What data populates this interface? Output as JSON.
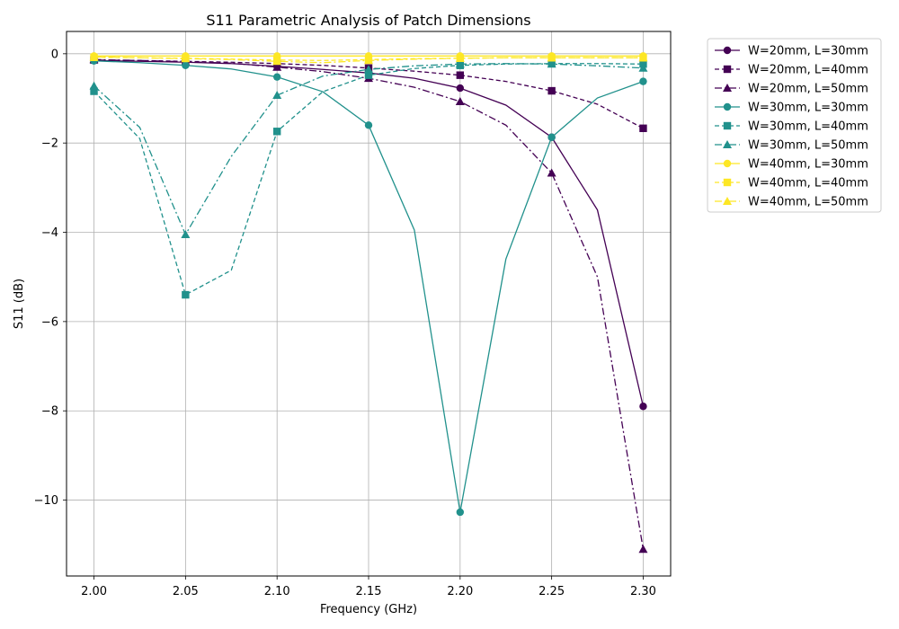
{
  "chart_data": {
    "type": "line",
    "title": "S11 Parametric Analysis of Patch Dimensions",
    "xlabel": "Frequency (GHz)",
    "ylabel": "S11 (dB)",
    "xlim": [
      1.985,
      2.315
    ],
    "ylim": [
      -11.7,
      0.5
    ],
    "xticks": [
      2.0,
      2.05,
      2.1,
      2.15,
      2.2,
      2.25,
      2.3
    ],
    "xtick_labels": [
      "2.00",
      "2.05",
      "2.10",
      "2.15",
      "2.20",
      "2.25",
      "2.30"
    ],
    "yticks": [
      0,
      -2,
      -4,
      -6,
      -8,
      -10
    ],
    "ytick_labels": [
      "0",
      "−2",
      "−4",
      "−6",
      "−8",
      "−10"
    ],
    "grid": true,
    "legend_position": "outside-right-top",
    "x": [
      2.0,
      2.025,
      2.05,
      2.075,
      2.1,
      2.125,
      2.15,
      2.175,
      2.2,
      2.225,
      2.25,
      2.275,
      2.3
    ],
    "marker_x": [
      2.0,
      2.05,
      2.1,
      2.15,
      2.2,
      2.25,
      2.3
    ],
    "series": [
      {
        "name": "W=20mm, L=30mm",
        "color": "#440154",
        "dash": "solid",
        "marker": "circle",
        "values": [
          -0.15,
          -0.17,
          -0.19,
          -0.22,
          -0.28,
          -0.35,
          -0.43,
          -0.55,
          -0.77,
          -1.15,
          -1.87,
          -3.5,
          -7.9
        ]
      },
      {
        "name": "W=20mm, L=40mm",
        "color": "#440154",
        "dash": "dashed",
        "marker": "square",
        "values": [
          -0.14,
          -0.15,
          -0.17,
          -0.19,
          -0.22,
          -0.26,
          -0.32,
          -0.39,
          -0.48,
          -0.62,
          -0.83,
          -1.13,
          -1.67
        ]
      },
      {
        "name": "W=20mm, L=50mm",
        "color": "#440154",
        "dash": "dashdot",
        "marker": "triangle",
        "values": [
          -0.13,
          -0.15,
          -0.18,
          -0.21,
          -0.3,
          -0.4,
          -0.55,
          -0.75,
          -1.07,
          -1.6,
          -2.67,
          -5.0,
          -11.1
        ]
      },
      {
        "name": "W=30mm, L=30mm",
        "color": "#21918c",
        "dash": "solid",
        "marker": "circle",
        "values": [
          -0.16,
          -0.2,
          -0.26,
          -0.34,
          -0.52,
          -0.85,
          -1.6,
          -3.95,
          -10.27,
          -4.6,
          -1.87,
          -0.99,
          -0.62
        ]
      },
      {
        "name": "W=30mm, L=40mm",
        "color": "#21918c",
        "dash": "dashed",
        "marker": "square",
        "values": [
          -0.84,
          -1.9,
          -5.4,
          -4.85,
          -1.74,
          -0.85,
          -0.48,
          -0.33,
          -0.26,
          -0.23,
          -0.22,
          -0.22,
          -0.23
        ]
      },
      {
        "name": "W=30mm, L=50mm",
        "color": "#21918c",
        "dash": "dashdot",
        "marker": "triangle",
        "values": [
          -0.72,
          -1.65,
          -4.05,
          -2.3,
          -0.93,
          -0.5,
          -0.35,
          -0.27,
          -0.23,
          -0.22,
          -0.23,
          -0.27,
          -0.32
        ]
      },
      {
        "name": "W=40mm, L=30mm",
        "color": "#fde725",
        "dash": "solid",
        "marker": "circle",
        "values": [
          -0.05,
          -0.05,
          -0.05,
          -0.05,
          -0.05,
          -0.05,
          -0.05,
          -0.05,
          -0.05,
          -0.05,
          -0.05,
          -0.05,
          -0.05
        ]
      },
      {
        "name": "W=40mm, L=40mm",
        "color": "#fde725",
        "dash": "dashed",
        "marker": "square",
        "values": [
          -0.08,
          -0.09,
          -0.1,
          -0.12,
          -0.14,
          -0.15,
          -0.13,
          -0.11,
          -0.1,
          -0.09,
          -0.09,
          -0.09,
          -0.09
        ]
      },
      {
        "name": "W=40mm, L=50mm",
        "color": "#fde725",
        "dash": "dashdot",
        "marker": "triangle",
        "values": [
          -0.07,
          -0.09,
          -0.11,
          -0.13,
          -0.17,
          -0.2,
          -0.15,
          -0.12,
          -0.1,
          -0.09,
          -0.09,
          -0.09,
          -0.09
        ]
      }
    ]
  }
}
